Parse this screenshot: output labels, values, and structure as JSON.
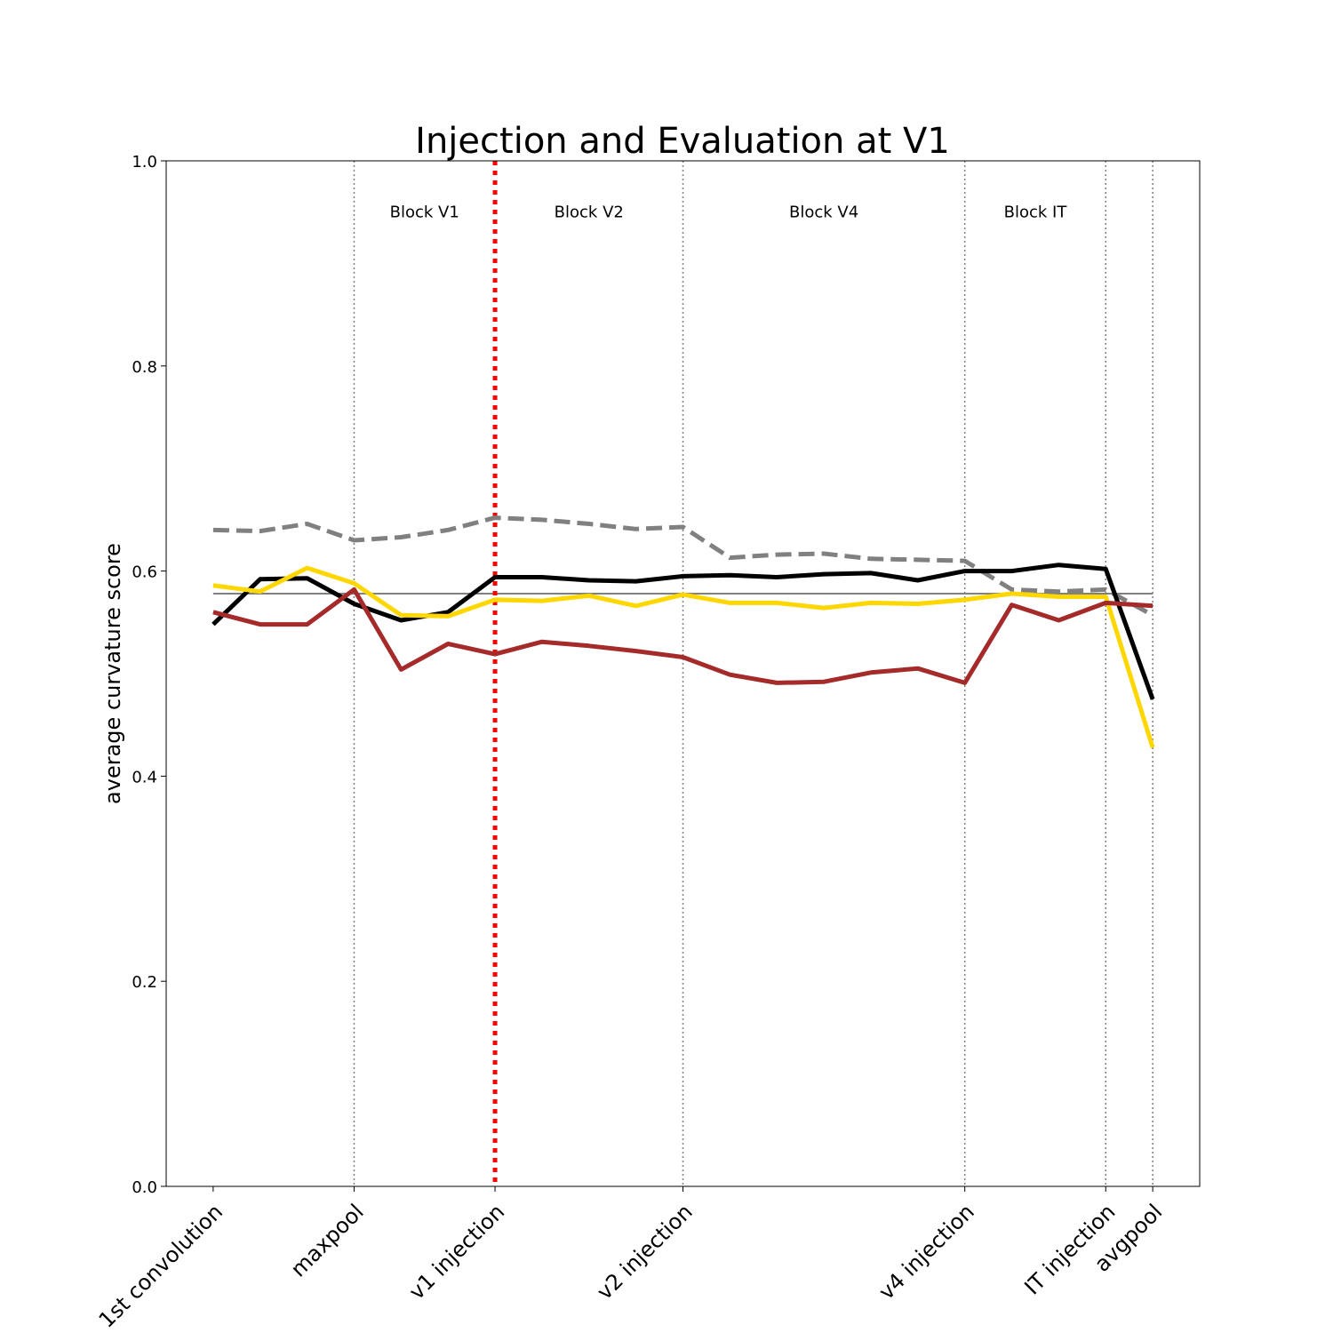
{
  "chart_data": {
    "type": "line",
    "title": "Injection and Evaluation at V1",
    "xlabel": "",
    "ylabel": "average curvature score",
    "ylim": [
      0,
      1
    ],
    "xlim": [
      -1,
      21
    ],
    "y_ticks": [
      {
        "value": 0.0,
        "label": "0.0"
      },
      {
        "value": 0.2,
        "label": "0.2"
      },
      {
        "value": 0.4,
        "label": "0.4"
      },
      {
        "value": 0.6,
        "label": "0.6"
      },
      {
        "value": 0.8,
        "label": "0.8"
      },
      {
        "value": 1.0,
        "label": "1.0"
      }
    ],
    "x_ticks": [
      {
        "x": 0,
        "label": "1st convolution"
      },
      {
        "x": 3,
        "label": "maxpool"
      },
      {
        "x": 6,
        "label": "v1 injection"
      },
      {
        "x": 10,
        "label": "v2 injection"
      },
      {
        "x": 16,
        "label": "v4 injection"
      },
      {
        "x": 19,
        "label": "IT injection"
      },
      {
        "x": 20,
        "label": "avgpool"
      }
    ],
    "boundaries": [
      3,
      10,
      16,
      19,
      20
    ],
    "injection_line": {
      "x": 6,
      "color": "#ff0000"
    },
    "baseline": {
      "y": 0.578,
      "color": "#808080"
    },
    "block_labels": [
      {
        "x": 4.5,
        "y": 0.95,
        "label": "Block V1"
      },
      {
        "x": 8,
        "y": 0.95,
        "label": "Block V2"
      },
      {
        "x": 13,
        "y": 0.95,
        "label": "Block V4"
      },
      {
        "x": 17.5,
        "y": 0.95,
        "label": "Block IT"
      }
    ],
    "x": [
      0,
      1,
      2,
      3,
      4,
      5,
      6,
      7,
      8,
      9,
      10,
      11,
      12,
      13,
      14,
      15,
      16,
      17,
      18,
      19,
      20
    ],
    "series": [
      {
        "name": "gray dashed",
        "color": "#808080",
        "dashed": true,
        "values": [
          0.64,
          0.639,
          0.646,
          0.63,
          0.633,
          0.64,
          0.652,
          0.65,
          0.646,
          0.641,
          0.643,
          0.613,
          0.616,
          0.617,
          0.612,
          0.611,
          0.61,
          0.582,
          0.58,
          0.582,
          0.557
        ]
      },
      {
        "name": "black",
        "color": "#000000",
        "dashed": false,
        "values": [
          0.548,
          0.592,
          0.593,
          0.568,
          0.552,
          0.56,
          0.594,
          0.594,
          0.591,
          0.59,
          0.595,
          0.596,
          0.594,
          0.597,
          0.598,
          0.591,
          0.6,
          0.6,
          0.606,
          0.602,
          0.475
        ]
      },
      {
        "name": "gold",
        "color": "#ffd700",
        "dashed": false,
        "values": [
          0.586,
          0.58,
          0.603,
          0.588,
          0.557,
          0.556,
          0.572,
          0.571,
          0.576,
          0.566,
          0.577,
          0.569,
          0.569,
          0.564,
          0.569,
          0.568,
          0.572,
          0.578,
          0.575,
          0.575,
          0.428
        ]
      },
      {
        "name": "brown",
        "color": "#a52a2a",
        "dashed": false,
        "values": [
          0.56,
          0.548,
          0.548,
          0.582,
          0.504,
          0.529,
          0.519,
          0.531,
          0.527,
          0.522,
          0.516,
          0.499,
          0.491,
          0.492,
          0.501,
          0.505,
          0.491,
          0.567,
          0.552,
          0.569,
          0.566
        ]
      }
    ]
  }
}
